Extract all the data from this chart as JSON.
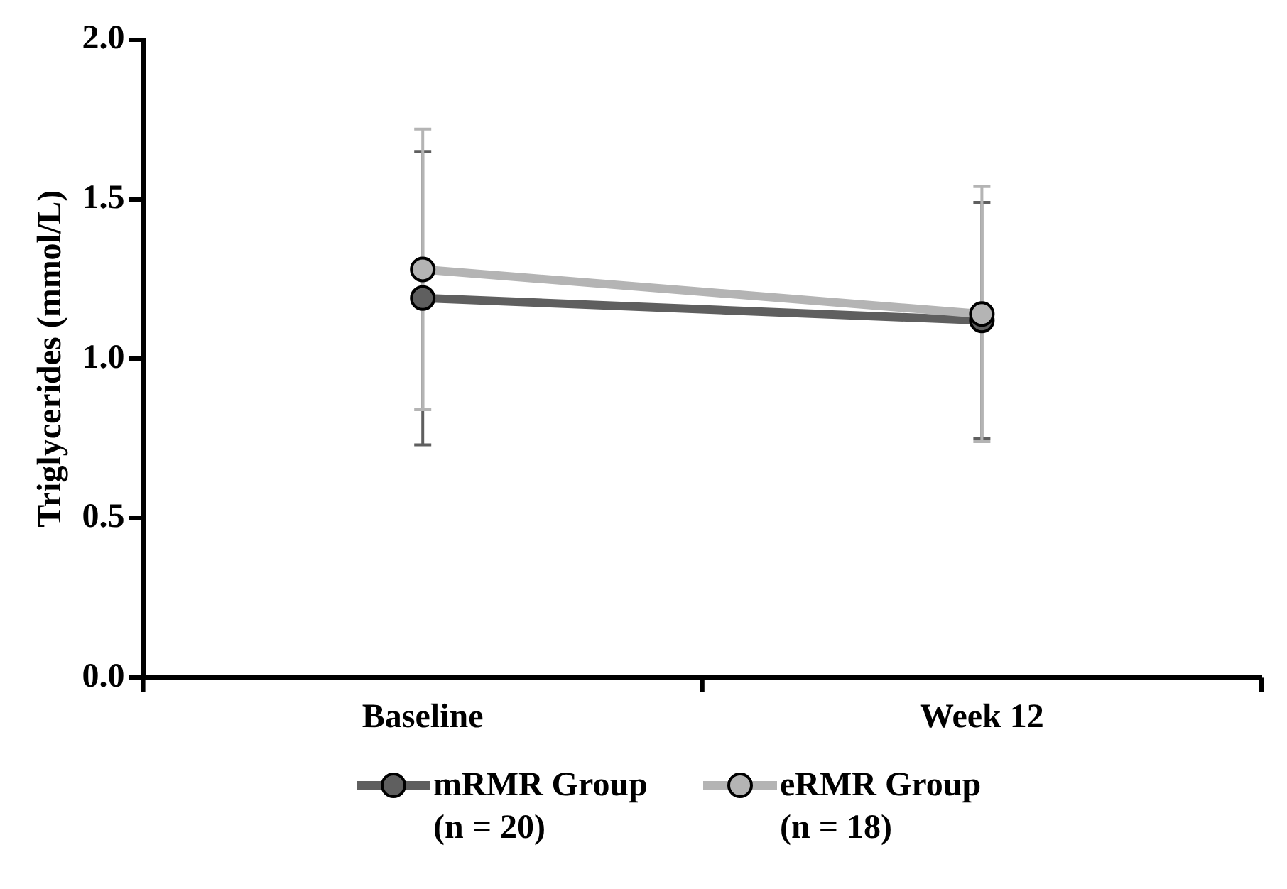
{
  "chart_data": {
    "type": "line",
    "ylabel": "Triglycerides (mmol/L)",
    "categories": [
      "Baseline",
      "Week 12"
    ],
    "ylim": [
      0,
      2
    ],
    "yticks": [
      {
        "value": 0,
        "label": "0.0"
      },
      {
        "value": 0.5,
        "label": "0.5"
      },
      {
        "value": 1,
        "label": "1.0"
      },
      {
        "value": 1.5,
        "label": "1.5"
      },
      {
        "value": 2,
        "label": "2.0"
      }
    ],
    "grid": false,
    "legend": "bottom",
    "marker": "circle",
    "line_style": "solid",
    "series": [
      {
        "name": "mRMR Group (n = 20)",
        "color": "#5f5f5f",
        "values": [
          1.19,
          1.12
        ],
        "errors": [
          0.46,
          0.37
        ]
      },
      {
        "name": "eRMR Group (n = 18)",
        "color": "#b4b4b4",
        "values": [
          1.28,
          1.14
        ],
        "errors": [
          0.44,
          0.4
        ]
      }
    ]
  }
}
